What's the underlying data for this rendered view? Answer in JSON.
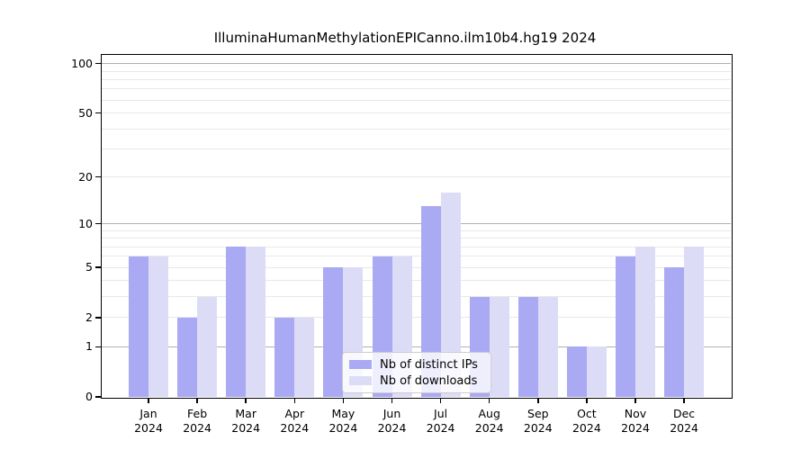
{
  "chart_data": {
    "type": "bar",
    "title": "IlluminaHumanMethylationEPICanno.ilm10b4.hg19 2024",
    "categories": [
      "Jan 2024",
      "Feb 2024",
      "Mar 2024",
      "Apr 2024",
      "May 2024",
      "Jun 2024",
      "Jul 2024",
      "Aug 2024",
      "Sep 2024",
      "Oct 2024",
      "Nov 2024",
      "Dec 2024"
    ],
    "series": [
      {
        "name": "Nb of distinct IPs",
        "color": "#a9a9f4",
        "values": [
          6,
          2,
          7,
          2,
          5,
          6,
          13,
          3,
          3,
          1,
          6,
          5
        ]
      },
      {
        "name": "Nb of downloads",
        "color": "#dcdcf7",
        "values": [
          6,
          3,
          7,
          2,
          5,
          6,
          16,
          3,
          3,
          1,
          7,
          7
        ]
      }
    ],
    "xlabel": "",
    "ylabel": "",
    "y_axis": {
      "scale": "log10(1+x)",
      "ticks": [
        0,
        1,
        2,
        5,
        10,
        20,
        50,
        100
      ],
      "major_gridlines": [
        1,
        10,
        100
      ],
      "minor_gridlines": [
        2,
        3,
        4,
        5,
        6,
        7,
        8,
        9,
        20,
        30,
        40,
        50,
        60,
        70,
        80,
        90
      ],
      "ylim": [
        0,
        113
      ]
    },
    "legend": {
      "position": "lower center"
    },
    "grid": true,
    "colors": {
      "grid_major": "#b0b0b0",
      "grid_minor": "#e8e8e8",
      "axis": "#000000",
      "background": "#ffffff"
    }
  }
}
